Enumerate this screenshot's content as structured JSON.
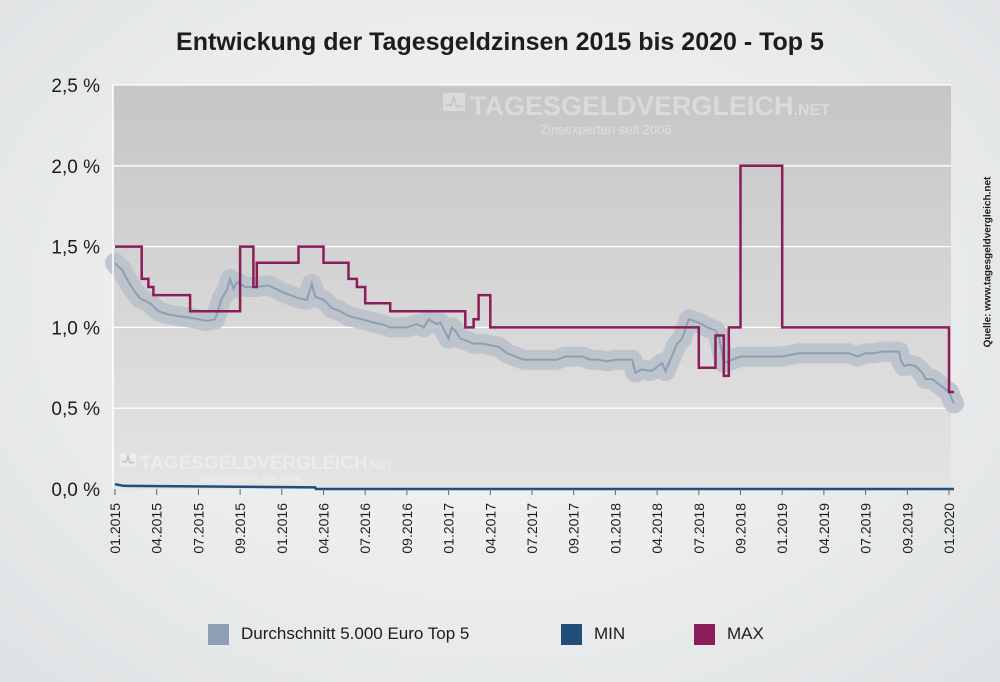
{
  "chart_data": {
    "type": "line",
    "title": "Entwickung der Tagesgeldzinsen 2015 bis 2020 - Top 5",
    "ylim": [
      0,
      2.5
    ],
    "y_ticks": [
      {
        "value": 0.0,
        "label": "0,0 %"
      },
      {
        "value": 0.5,
        "label": "0,5 %"
      },
      {
        "value": 1.0,
        "label": "1,0 %"
      },
      {
        "value": 1.5,
        "label": "1,5 %"
      },
      {
        "value": 2.0,
        "label": "2,0 %"
      },
      {
        "value": 2.5,
        "label": "2,5 %"
      }
    ],
    "x_ticks": [
      "01.2015",
      "04.2015",
      "07.2015",
      "09.2015",
      "01.2016",
      "04.2016",
      "07.2016",
      "09.2016",
      "01.2017",
      "04.2017",
      "07.2017",
      "09.2017",
      "01.2018",
      "04.2018",
      "07.2018",
      "09.2018",
      "01.2019",
      "04.2019",
      "07.2019",
      "09.2019",
      "01.2020"
    ],
    "grid": "horizontal",
    "legend_position": "bottom",
    "series": [
      {
        "name": "Durchschnitt 5.000 Euro Top 5",
        "color": "#8e9fb4",
        "points": [
          [
            0,
            1.4
          ],
          [
            0.15,
            1.38
          ],
          [
            0.4,
            1.36
          ],
          [
            0.7,
            1.3
          ],
          [
            1.0,
            1.25
          ],
          [
            1.2,
            1.22
          ],
          [
            1.5,
            1.18
          ],
          [
            2.1,
            1.15
          ],
          [
            2.6,
            1.1
          ],
          [
            3.2,
            1.08
          ],
          [
            3.8,
            1.07
          ],
          [
            4.5,
            1.06
          ],
          [
            5.0,
            1.05
          ],
          [
            5.5,
            1.04
          ],
          [
            6.0,
            1.05
          ],
          [
            6.4,
            1.18
          ],
          [
            6.7,
            1.23
          ],
          [
            6.9,
            1.3
          ],
          [
            7.1,
            1.24
          ],
          [
            7.3,
            1.28
          ],
          [
            7.8,
            1.25
          ],
          [
            8.5,
            1.25
          ],
          [
            9.2,
            1.26
          ],
          [
            10.0,
            1.22
          ],
          [
            10.5,
            1.2
          ],
          [
            11.0,
            1.18
          ],
          [
            11.5,
            1.17
          ],
          [
            11.8,
            1.27
          ],
          [
            12.0,
            1.19
          ],
          [
            12.5,
            1.17
          ],
          [
            13.0,
            1.12
          ],
          [
            13.5,
            1.1
          ],
          [
            14.0,
            1.07
          ],
          [
            14.8,
            1.05
          ],
          [
            15.5,
            1.03
          ],
          [
            16.0,
            1.02
          ],
          [
            16.5,
            1.0
          ],
          [
            17.5,
            1.0
          ],
          [
            18.1,
            1.02
          ],
          [
            18.5,
            1.0
          ],
          [
            18.8,
            1.05
          ],
          [
            19.3,
            1.02
          ],
          [
            19.5,
            1.03
          ],
          [
            20.0,
            0.93
          ],
          [
            20.2,
            1.0
          ],
          [
            20.4,
            0.98
          ],
          [
            20.7,
            0.93
          ],
          [
            21.0,
            0.92
          ],
          [
            21.5,
            0.9
          ],
          [
            22.0,
            0.9
          ],
          [
            23.0,
            0.88
          ],
          [
            23.5,
            0.84
          ],
          [
            24.0,
            0.82
          ],
          [
            24.5,
            0.8
          ],
          [
            25.5,
            0.8
          ],
          [
            26.5,
            0.8
          ],
          [
            27.0,
            0.82
          ],
          [
            28.0,
            0.82
          ],
          [
            28.5,
            0.8
          ],
          [
            29.0,
            0.8
          ],
          [
            29.5,
            0.79
          ],
          [
            30.0,
            0.8
          ],
          [
            31.0,
            0.8
          ],
          [
            31.2,
            0.72
          ],
          [
            31.6,
            0.74
          ],
          [
            32.1,
            0.73
          ],
          [
            32.3,
            0.74
          ],
          [
            32.8,
            0.78
          ],
          [
            33.0,
            0.73
          ],
          [
            33.3,
            0.8
          ],
          [
            33.7,
            0.9
          ],
          [
            34.0,
            0.93
          ],
          [
            34.4,
            1.05
          ],
          [
            35.0,
            1.03
          ],
          [
            35.5,
            1.0
          ],
          [
            36.0,
            0.98
          ],
          [
            36.2,
            0.95
          ],
          [
            36.5,
            0.78
          ],
          [
            37.0,
            0.8
          ],
          [
            37.5,
            0.82
          ],
          [
            38.0,
            0.82
          ],
          [
            39.0,
            0.82
          ],
          [
            40.0,
            0.82
          ],
          [
            41.0,
            0.84
          ],
          [
            42.0,
            0.84
          ],
          [
            43.0,
            0.84
          ],
          [
            44.0,
            0.84
          ],
          [
            44.5,
            0.82
          ],
          [
            45.0,
            0.84
          ],
          [
            45.5,
            0.84
          ],
          [
            46.0,
            0.85
          ],
          [
            47.0,
            0.85
          ],
          [
            47.1,
            0.8
          ],
          [
            47.3,
            0.76
          ],
          [
            47.6,
            0.77
          ],
          [
            48.0,
            0.76
          ],
          [
            48.4,
            0.72
          ],
          [
            48.6,
            0.68
          ],
          [
            49.0,
            0.68
          ],
          [
            49.5,
            0.64
          ],
          [
            50.0,
            0.6
          ],
          [
            50.2,
            0.55
          ],
          [
            50.3,
            0.53
          ]
        ]
      },
      {
        "name": "MIN",
        "color": "#1f4e79",
        "points": [
          [
            0,
            0.03
          ],
          [
            0.5,
            0.02
          ],
          [
            12,
            0.01
          ],
          [
            12.05,
            0.0
          ],
          [
            50.3,
            0.0
          ]
        ]
      },
      {
        "name": "MAX",
        "color": "#8c1d5b",
        "points": [
          [
            0,
            1.5
          ],
          [
            1.6,
            1.5
          ],
          [
            1.6,
            1.3
          ],
          [
            2.0,
            1.3
          ],
          [
            2.0,
            1.25
          ],
          [
            2.3,
            1.25
          ],
          [
            2.3,
            1.2
          ],
          [
            4.5,
            1.2
          ],
          [
            4.5,
            1.1
          ],
          [
            7.5,
            1.1
          ],
          [
            7.5,
            1.5
          ],
          [
            8.3,
            1.5
          ],
          [
            8.3,
            1.25
          ],
          [
            8.5,
            1.25
          ],
          [
            8.5,
            1.4
          ],
          [
            11.0,
            1.4
          ],
          [
            11.0,
            1.5
          ],
          [
            12.5,
            1.5
          ],
          [
            12.5,
            1.4
          ],
          [
            14.0,
            1.4
          ],
          [
            14.0,
            1.3
          ],
          [
            14.5,
            1.3
          ],
          [
            14.5,
            1.25
          ],
          [
            15.0,
            1.25
          ],
          [
            15.0,
            1.15
          ],
          [
            16.5,
            1.15
          ],
          [
            16.5,
            1.1
          ],
          [
            21.0,
            1.1
          ],
          [
            21.0,
            1.0
          ],
          [
            21.5,
            1.0
          ],
          [
            21.5,
            1.05
          ],
          [
            21.8,
            1.05
          ],
          [
            21.8,
            1.2
          ],
          [
            22.5,
            1.2
          ],
          [
            22.5,
            1.0
          ],
          [
            35.0,
            1.0
          ],
          [
            35.0,
            0.75
          ],
          [
            36.0,
            0.75
          ],
          [
            36.0,
            0.95
          ],
          [
            36.5,
            0.95
          ],
          [
            36.5,
            0.7
          ],
          [
            36.8,
            0.7
          ],
          [
            36.8,
            1.0
          ],
          [
            37.5,
            1.0
          ],
          [
            37.5,
            2.0
          ],
          [
            40.0,
            2.0
          ],
          [
            40.0,
            1.0
          ],
          [
            50.0,
            1.0
          ],
          [
            50.0,
            0.6
          ],
          [
            50.3,
            0.6
          ]
        ]
      }
    ]
  },
  "watermark": {
    "brand": "TAGESGELDVERGLEICH",
    "suffix": ".NET",
    "tagline": "Zinsexperten seit 2006"
  },
  "source_label": "Quelle: www.tagesgeldvergleich.net",
  "colors": {
    "plot_top": "#c6c6c6",
    "plot_bottom": "#e4e4e4",
    "band": "#b7bfc9"
  }
}
